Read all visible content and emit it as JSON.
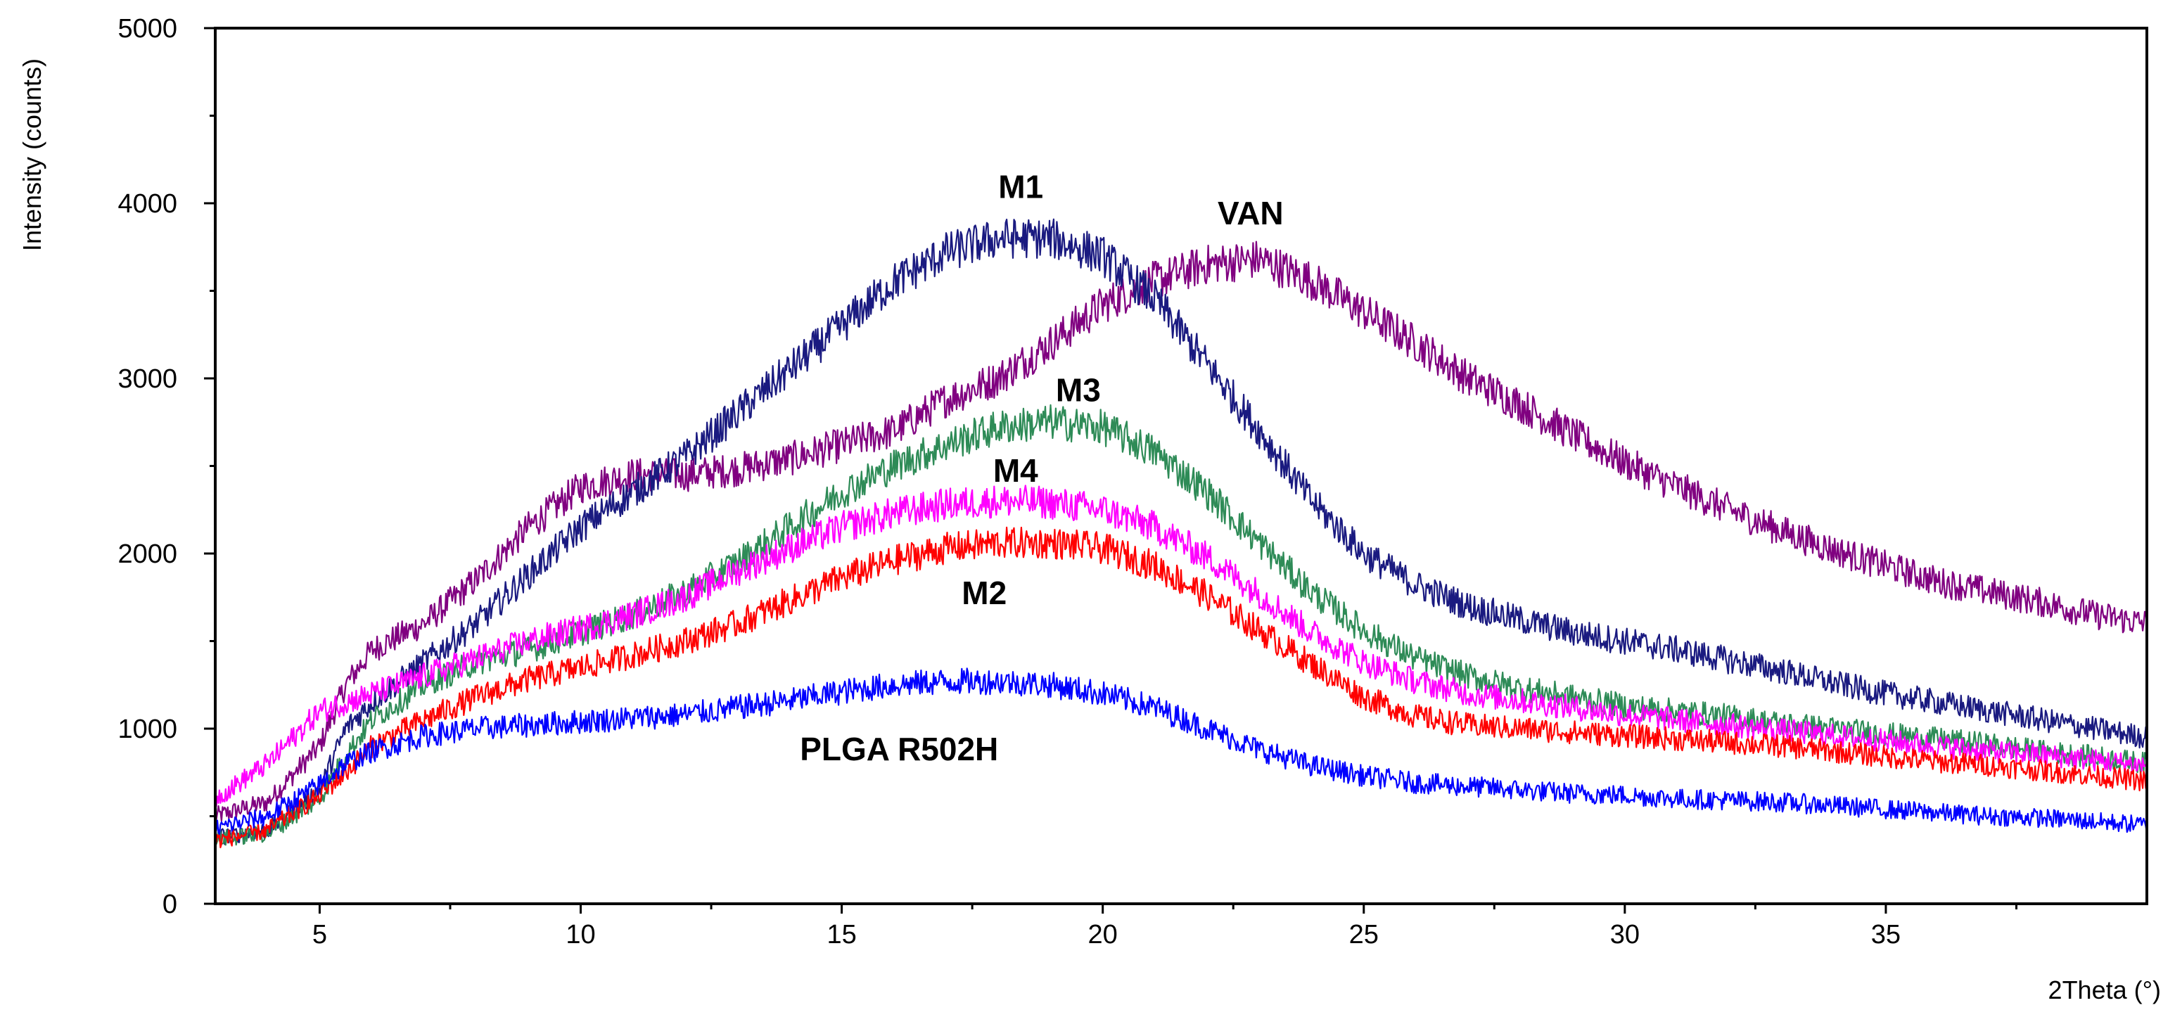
{
  "chart_data": {
    "type": "line",
    "xlabel": "2Theta (°)",
    "ylabel": "Intensity (counts)",
    "xlim": [
      3,
      40
    ],
    "ylim": [
      0,
      5000
    ],
    "x_ticks": [
      5,
      10,
      15,
      20,
      25,
      30,
      35
    ],
    "y_ticks": [
      0,
      1000,
      2000,
      3000,
      4000,
      5000
    ],
    "grid": false,
    "series": [
      {
        "name": "VAN",
        "color": "#800080",
        "label_pos": [
          22.2,
          3880
        ],
        "x": [
          3,
          4,
          5,
          5.5,
          6,
          7,
          8,
          9,
          10,
          11,
          12,
          13,
          14,
          15,
          16,
          17,
          18,
          19,
          20,
          21,
          22,
          23,
          24,
          25,
          26,
          27,
          28,
          29,
          30,
          31,
          32,
          33,
          34,
          35,
          36,
          37,
          38,
          39,
          40
        ],
        "y": [
          500,
          580,
          900,
          1250,
          1450,
          1600,
          1850,
          2150,
          2380,
          2450,
          2450,
          2480,
          2540,
          2620,
          2700,
          2880,
          3000,
          3200,
          3420,
          3560,
          3650,
          3680,
          3560,
          3380,
          3200,
          3000,
          2850,
          2680,
          2520,
          2380,
          2250,
          2130,
          2020,
          1930,
          1840,
          1780,
          1720,
          1650,
          1600
        ]
      },
      {
        "name": "M1",
        "color": "#1a1a80",
        "label_pos": [
          18.0,
          4030
        ],
        "x": [
          3,
          4,
          5,
          5.5,
          6,
          7,
          8,
          9,
          10,
          11,
          12,
          13,
          14,
          15,
          16,
          17,
          18,
          19,
          20,
          21,
          22,
          23,
          24,
          25,
          26,
          27,
          28,
          29,
          30,
          31,
          32,
          33,
          34,
          35,
          36,
          37,
          38,
          39,
          40
        ],
        "y": [
          380,
          420,
          650,
          1000,
          1150,
          1380,
          1600,
          1880,
          2150,
          2350,
          2550,
          2800,
          3050,
          3300,
          3550,
          3720,
          3800,
          3800,
          3700,
          3450,
          3080,
          2700,
          2300,
          2000,
          1820,
          1700,
          1620,
          1550,
          1500,
          1450,
          1390,
          1330,
          1260,
          1200,
          1150,
          1100,
          1050,
          1000,
          950
        ]
      },
      {
        "name": "M3",
        "color": "#2e8b57",
        "label_pos": [
          19.1,
          2870
        ],
        "x": [
          3,
          4,
          5,
          5.5,
          6,
          7,
          8,
          9,
          10,
          11,
          12,
          13,
          14,
          15,
          16,
          17,
          18,
          19,
          20,
          21,
          22,
          23,
          24,
          25,
          26,
          27,
          28,
          29,
          30,
          31,
          32,
          33,
          34,
          35,
          36,
          37,
          38,
          39,
          40
        ],
        "y": [
          370,
          400,
          600,
          850,
          1050,
          1250,
          1380,
          1450,
          1550,
          1650,
          1780,
          1950,
          2150,
          2350,
          2500,
          2620,
          2720,
          2750,
          2720,
          2580,
          2350,
          2060,
          1780,
          1560,
          1400,
          1300,
          1230,
          1180,
          1130,
          1100,
          1070,
          1030,
          1000,
          970,
          940,
          910,
          870,
          840,
          800
        ]
      },
      {
        "name": "M4",
        "color": "#ff00ff",
        "label_pos": [
          17.9,
          2410
        ],
        "x": [
          3,
          4,
          5,
          5.5,
          6,
          7,
          8,
          9,
          10,
          11,
          12,
          13,
          14,
          15,
          16,
          17,
          18,
          19,
          20,
          21,
          22,
          23,
          24,
          25,
          26,
          27,
          28,
          29,
          30,
          31,
          32,
          33,
          34,
          35,
          36,
          37,
          38,
          39,
          40
        ],
        "y": [
          600,
          800,
          1100,
          1150,
          1200,
          1300,
          1400,
          1500,
          1570,
          1650,
          1750,
          1900,
          2030,
          2150,
          2230,
          2280,
          2300,
          2290,
          2250,
          2150,
          1980,
          1770,
          1550,
          1380,
          1270,
          1200,
          1160,
          1120,
          1080,
          1050,
          1020,
          990,
          960,
          930,
          900,
          870,
          850,
          820,
          790
        ]
      },
      {
        "name": "M2",
        "color": "#ff0000",
        "label_pos": [
          17.3,
          1710
        ],
        "x": [
          3,
          4,
          5,
          5.5,
          6,
          7,
          8,
          9,
          10,
          11,
          12,
          13,
          14,
          15,
          16,
          17,
          18,
          19,
          20,
          21,
          22,
          23,
          24,
          25,
          26,
          27,
          28,
          29,
          30,
          31,
          32,
          33,
          34,
          35,
          36,
          37,
          38,
          39,
          40
        ],
        "y": [
          360,
          420,
          620,
          750,
          900,
          1050,
          1180,
          1280,
          1350,
          1420,
          1500,
          1600,
          1730,
          1860,
          1960,
          2030,
          2060,
          2060,
          2030,
          1930,
          1760,
          1560,
          1370,
          1180,
          1070,
          1020,
          1000,
          980,
          960,
          940,
          920,
          900,
          870,
          840,
          810,
          790,
          760,
          730,
          700
        ]
      },
      {
        "name": "PLGA R502H",
        "color": "#0000ff",
        "label_pos": [
          14.2,
          820
        ],
        "x": [
          3,
          4,
          5,
          5.5,
          6,
          7,
          8,
          9,
          10,
          11,
          12,
          13,
          14,
          15,
          16,
          17,
          18,
          19,
          20,
          21,
          22,
          23,
          24,
          25,
          26,
          27,
          28,
          29,
          30,
          31,
          32,
          33,
          34,
          35,
          36,
          37,
          38,
          39,
          40
        ],
        "y": [
          430,
          500,
          680,
          800,
          870,
          960,
          1000,
          1020,
          1040,
          1060,
          1080,
          1120,
          1160,
          1210,
          1250,
          1270,
          1270,
          1250,
          1200,
          1120,
          1000,
          880,
          790,
          730,
          690,
          670,
          650,
          630,
          620,
          600,
          590,
          580,
          560,
          540,
          520,
          500,
          490,
          470,
          450
        ]
      }
    ]
  }
}
